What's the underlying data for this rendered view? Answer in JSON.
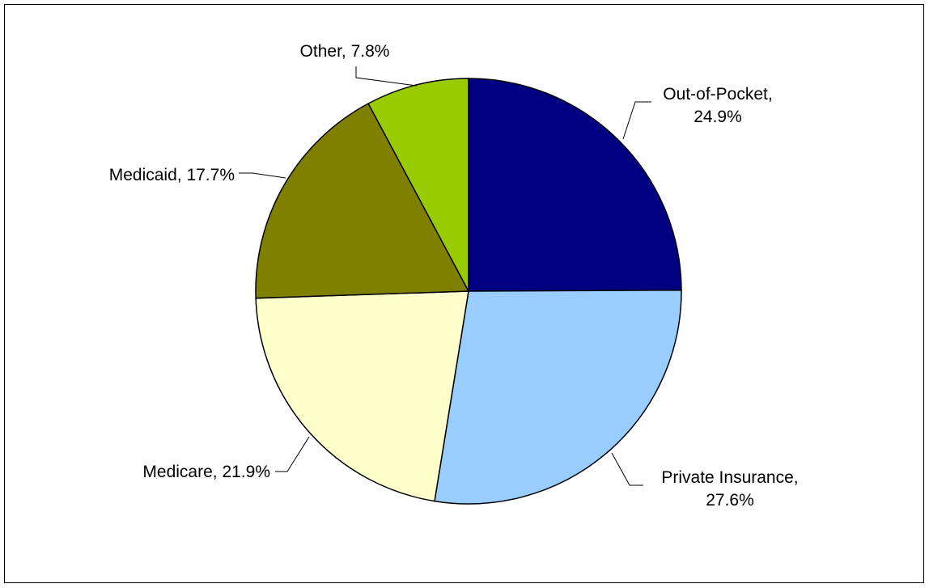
{
  "chart_data": {
    "type": "pie",
    "title": "",
    "categories": [
      "Out-of-Pocket",
      "Private Insurance",
      "Medicare",
      "Medicaid",
      "Other"
    ],
    "values": [
      24.9,
      27.6,
      21.9,
      17.7,
      7.8
    ],
    "unit": "%",
    "colors": [
      "#000080",
      "#99CCFF",
      "#FFFFCC",
      "#808000",
      "#99CC00"
    ],
    "labels": [
      {
        "lines": [
          "Out-of-Pocket,",
          "24.9%"
        ]
      },
      {
        "lines": [
          "Private Insurance,",
          "27.6%"
        ]
      },
      {
        "lines": [
          "Medicare, 21.9%"
        ]
      },
      {
        "lines": [
          "Medicaid, 17.7%"
        ]
      },
      {
        "lines": [
          "Other, 7.8%"
        ]
      }
    ],
    "start_direction": "top",
    "direction": "clockwise",
    "legend": "none"
  }
}
